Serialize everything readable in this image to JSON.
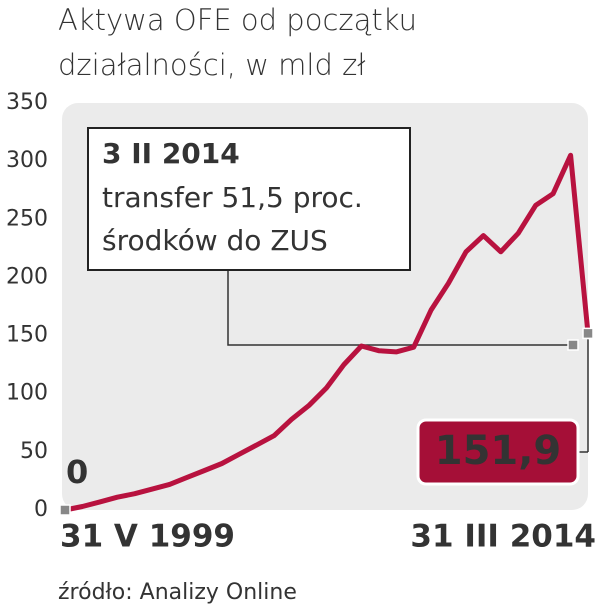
{
  "chart_data": {
    "type": "line",
    "title": [
      "Aktywa OFE od początku",
      "działalności, w mld zł"
    ],
    "categories": [
      "31 V 1999",
      null,
      null,
      null,
      null,
      null,
      null,
      null,
      null,
      null,
      null,
      null,
      null,
      null,
      null,
      null,
      null,
      null,
      null,
      null,
      null,
      null,
      null,
      null,
      null,
      null,
      null,
      null,
      null,
      null,
      "31 III 2014"
    ],
    "values": [
      0,
      3,
      7,
      11,
      14,
      18,
      22,
      28,
      34,
      40,
      48,
      56,
      64,
      78,
      90,
      105,
      125,
      141,
      137,
      136,
      140,
      172,
      195,
      222,
      236,
      222,
      238,
      262,
      272,
      305,
      151.9
    ],
    "value_labels": [
      "0",
      null,
      null,
      null,
      null,
      null,
      null,
      null,
      null,
      null,
      null,
      null,
      null,
      null,
      null,
      null,
      null,
      null,
      null,
      null,
      null,
      null,
      null,
      null,
      null,
      null,
      null,
      null,
      null,
      null,
      "151,9"
    ],
    "color": "#b8123f",
    "ylim": [
      0,
      350
    ],
    "yticks": [
      0,
      50,
      100,
      150,
      200,
      250,
      300,
      350
    ],
    "annotation": {
      "date": "3 II 2014",
      "lines": [
        "transfer 51,5 proc.",
        "środków do ZUS"
      ]
    },
    "source": "źródło: Analizy Online"
  }
}
